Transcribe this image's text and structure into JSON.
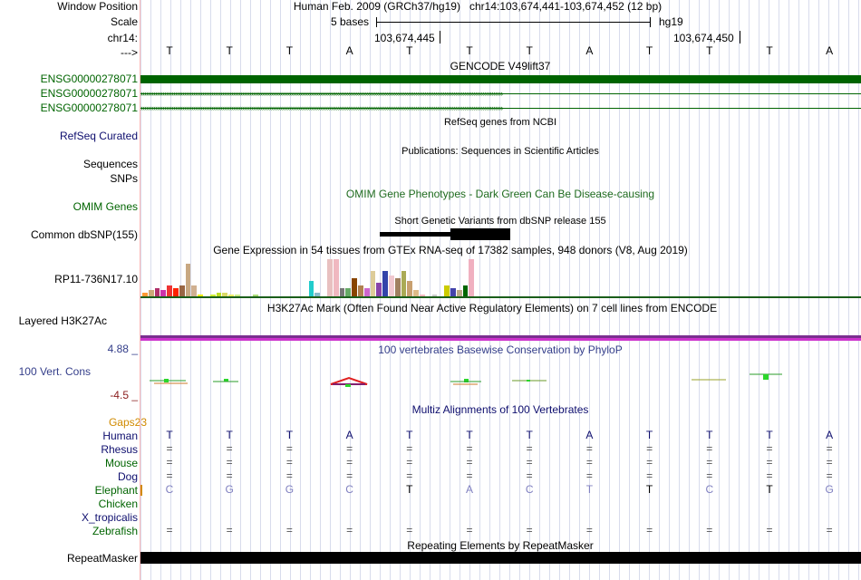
{
  "header": {
    "window_position_label": "Window Position",
    "scale_label": "Scale",
    "chrom_label": "chr14:",
    "arrow_label": "--->",
    "assembly_text": "Human Feb. 2009 (GRCh37/hg19)",
    "position_text": "chr14:103,674,441-103,674,452 (12 bp)",
    "scale_text": "5 bases",
    "scale_db": "hg19",
    "coord_1": "103,674,445",
    "coord_2": "103,674,450"
  },
  "sequence": [
    "T",
    "T",
    "T",
    "A",
    "T",
    "T",
    "T",
    "A",
    "T",
    "T",
    "T",
    "A"
  ],
  "tracks": {
    "gencode": {
      "title": "GENCODE V49lift37",
      "genes": [
        "ENSG00000278071",
        "ENSG00000278071",
        "ENSG00000278071"
      ]
    },
    "refseq": {
      "title": "RefSeq genes from NCBI",
      "label": "RefSeq Curated"
    },
    "publications": {
      "title": "Publications: Sequences in Scientific Articles",
      "label_1": "Sequences",
      "label_2": "SNPs"
    },
    "omim": {
      "title": "OMIM Gene Phenotypes - Dark Green Can Be Disease-causing",
      "label": "OMIM Genes"
    },
    "dbsnp": {
      "title": "Short Genetic Variants from dbSNP release 155",
      "label": "Common dbSNP(155)"
    },
    "gtex": {
      "title": "Gene Expression in 54 tissues from GTEx RNA-seq of 17382 samples, 948 donors (V8, Aug 2019)",
      "label": "RP11-736N17.10"
    },
    "h3k27ac": {
      "title": "H3K27Ac Mark (Often Found Near Active Regulatory Elements) on 7 cell lines from ENCODE",
      "label": "Layered H3K27Ac"
    },
    "phylop": {
      "title": "100 vertebrates Basewise Conservation by PhyloP",
      "label": "100 Vert. Cons",
      "max": "4.88 _",
      "min": "-4.5 _"
    },
    "multiz": {
      "title": "Multiz Alignments of 100 Vertebrates",
      "gaps_label": "Gaps",
      "gaps_value": "23"
    },
    "repeatmasker": {
      "title": "Repeating Elements by RepeatMasker",
      "label": "RepeatMasker"
    }
  },
  "species": [
    {
      "name": "Human",
      "bases": [
        "T",
        "T",
        "T",
        "A",
        "T",
        "T",
        "T",
        "A",
        "T",
        "T",
        "T",
        "A"
      ]
    },
    {
      "name": "Rhesus",
      "bases": [
        "=",
        "=",
        "=",
        "=",
        "=",
        "=",
        "=",
        "=",
        "=",
        "=",
        "=",
        "="
      ]
    },
    {
      "name": "Mouse",
      "bases": [
        "=",
        "=",
        "=",
        "=",
        "=",
        "=",
        "=",
        "=",
        "=",
        "=",
        "=",
        "="
      ]
    },
    {
      "name": "Dog",
      "bases": [
        "=",
        "=",
        "=",
        "=",
        "=",
        "=",
        "=",
        "=",
        "=",
        "=",
        "=",
        "="
      ]
    },
    {
      "name": "Elephant",
      "bases": [
        "C",
        "G",
        "G",
        "C",
        "T",
        "A",
        "C",
        "T",
        "T",
        "C",
        "T",
        "G"
      ]
    },
    {
      "name": "Chicken",
      "bases": []
    },
    {
      "name": "X_tropicalis",
      "bases": []
    },
    {
      "name": "Zebrafish",
      "bases": [
        "=",
        "=",
        "=",
        "=",
        "=",
        "=",
        "=",
        "=",
        "=",
        "=",
        "=",
        "="
      ]
    }
  ],
  "colors": {
    "label_blue": "#0e0e6e",
    "label_green": "#006400",
    "gene_green": "#006400",
    "omim_green": "#1f6b1f",
    "phylop_blue": "#343e8a",
    "phylop_min": "#8a1c1c",
    "gaps_orange": "#d08a00",
    "h3k27_line": "#cc33cc"
  },
  "gtex_values": [
    2,
    3,
    4,
    3,
    5,
    4,
    5,
    14,
    5,
    1,
    0.5,
    1,
    2,
    2,
    1,
    1,
    0.5,
    0.5,
    1,
    0.3,
    0.5,
    0.3,
    0.3,
    0.3,
    0.5,
    0.3,
    0.3,
    7,
    2,
    0.5,
    16,
    16,
    4,
    4,
    8,
    5,
    4,
    11,
    6,
    11,
    9,
    8,
    11,
    7,
    3,
    1,
    0.5,
    1,
    0.5,
    5,
    4,
    3,
    5,
    16
  ]
}
